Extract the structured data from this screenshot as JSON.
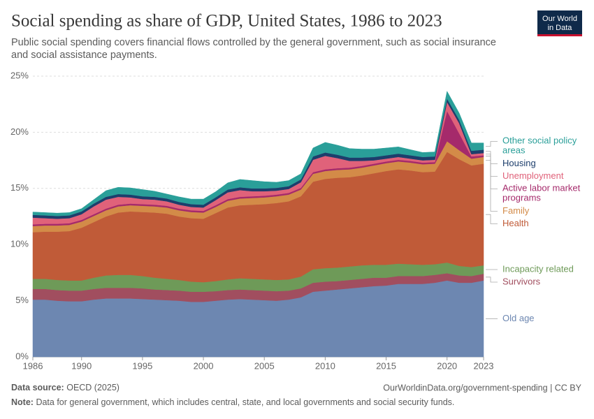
{
  "header": {
    "title": "Social spending as share of GDP, United States, 1986 to 2023",
    "subtitle_lines": [
      "Public social spending covers financial flows controlled by the general government, such as social insurance",
      "and social assistance payments."
    ],
    "logo_lines": [
      "Our World",
      "in Data"
    ]
  },
  "footer": {
    "source_label": "Data source:",
    "source": "OECD (2025)",
    "url": "OurWorldinData.org/government-spending | CC BY",
    "note_label": "Note:",
    "note": "Data for general government, which includes central, state, and local governments and social security funds."
  },
  "chart_data": {
    "type": "area",
    "stacked": true,
    "grid": true,
    "x": [
      1986,
      1987,
      1988,
      1989,
      1990,
      1991,
      1992,
      1993,
      1994,
      1995,
      1996,
      1997,
      1998,
      1999,
      2000,
      2001,
      2002,
      2003,
      2004,
      2005,
      2006,
      2007,
      2008,
      2009,
      2010,
      2011,
      2012,
      2013,
      2014,
      2015,
      2016,
      2017,
      2018,
      2019,
      2020,
      2021,
      2022,
      2023
    ],
    "xlim": [
      1986,
      2023
    ],
    "xticks": [
      1986,
      1990,
      1995,
      2000,
      2005,
      2010,
      2015,
      2020,
      2023
    ],
    "ylim": [
      0,
      25
    ],
    "yticks": [
      {
        "value": 0,
        "label": "0%"
      },
      {
        "value": 5,
        "label": "5%"
      },
      {
        "value": 10,
        "label": "10%"
      },
      {
        "value": 15,
        "label": "15%"
      },
      {
        "value": 20,
        "label": "20%"
      },
      {
        "value": 25,
        "label": "25%"
      }
    ],
    "series": [
      {
        "name": "Old age",
        "color": "#6d87b1",
        "values": [
          5.1,
          5.1,
          5.0,
          4.95,
          4.95,
          5.1,
          5.2,
          5.2,
          5.2,
          5.15,
          5.1,
          5.05,
          5.0,
          4.9,
          4.9,
          5.0,
          5.1,
          5.15,
          5.1,
          5.05,
          5.0,
          5.1,
          5.3,
          5.8,
          5.9,
          6.0,
          6.1,
          6.2,
          6.3,
          6.35,
          6.5,
          6.5,
          6.5,
          6.6,
          6.8,
          6.6,
          6.6,
          6.8
        ]
      },
      {
        "name": "Survivors",
        "color": "#a14e5f",
        "values": [
          0.95,
          0.95,
          0.95,
          0.95,
          0.95,
          0.95,
          0.95,
          0.95,
          0.95,
          0.95,
          0.9,
          0.9,
          0.9,
          0.9,
          0.9,
          0.85,
          0.85,
          0.85,
          0.85,
          0.85,
          0.85,
          0.8,
          0.8,
          0.8,
          0.8,
          0.75,
          0.75,
          0.75,
          0.75,
          0.7,
          0.7,
          0.7,
          0.7,
          0.7,
          0.65,
          0.65,
          0.6,
          0.6
        ]
      },
      {
        "name": "Incapacity related",
        "color": "#6e9a58",
        "values": [
          0.9,
          0.9,
          0.9,
          0.9,
          0.9,
          1.0,
          1.1,
          1.15,
          1.15,
          1.1,
          1.05,
          1.0,
          0.95,
          0.9,
          0.85,
          0.9,
          0.95,
          1.0,
          1.0,
          1.0,
          1.0,
          1.0,
          1.05,
          1.2,
          1.2,
          1.2,
          1.2,
          1.2,
          1.15,
          1.15,
          1.1,
          1.05,
          1.0,
          0.95,
          0.95,
          0.85,
          0.8,
          0.75
        ]
      },
      {
        "name": "Health",
        "color": "#c05b38",
        "values": [
          4.15,
          4.2,
          4.3,
          4.4,
          4.7,
          4.95,
          5.25,
          5.55,
          5.65,
          5.7,
          5.8,
          5.8,
          5.65,
          5.65,
          5.65,
          6.05,
          6.4,
          6.5,
          6.6,
          6.7,
          6.85,
          6.95,
          7.15,
          7.8,
          7.95,
          8.0,
          7.95,
          8.0,
          8.15,
          8.35,
          8.4,
          8.35,
          8.25,
          8.25,
          9.85,
          9.5,
          9.05,
          9.05
        ]
      },
      {
        "name": "Family",
        "color": "#d38b48",
        "values": [
          0.55,
          0.55,
          0.55,
          0.55,
          0.55,
          0.55,
          0.55,
          0.55,
          0.55,
          0.55,
          0.55,
          0.55,
          0.55,
          0.55,
          0.55,
          0.55,
          0.6,
          0.6,
          0.6,
          0.6,
          0.6,
          0.6,
          0.6,
          0.7,
          0.7,
          0.7,
          0.7,
          0.7,
          0.7,
          0.7,
          0.7,
          0.7,
          0.7,
          0.7,
          0.95,
          0.8,
          0.6,
          0.6
        ]
      },
      {
        "name": "Active labor market programs",
        "color": "#a52a6b",
        "values": [
          0.15,
          0.15,
          0.15,
          0.15,
          0.15,
          0.15,
          0.15,
          0.15,
          0.15,
          0.15,
          0.15,
          0.15,
          0.15,
          0.15,
          0.15,
          0.15,
          0.15,
          0.15,
          0.15,
          0.15,
          0.15,
          0.15,
          0.15,
          0.15,
          0.15,
          0.15,
          0.15,
          0.15,
          0.15,
          0.15,
          0.15,
          0.15,
          0.15,
          0.15,
          2.7,
          1.5,
          0.2,
          0.15
        ]
      },
      {
        "name": "Unemployment",
        "color": "#e0627a",
        "values": [
          0.6,
          0.5,
          0.45,
          0.45,
          0.5,
          0.7,
          0.8,
          0.7,
          0.55,
          0.45,
          0.45,
          0.4,
          0.35,
          0.3,
          0.3,
          0.45,
          0.6,
          0.6,
          0.45,
          0.4,
          0.35,
          0.35,
          0.5,
          1.1,
          1.2,
          0.9,
          0.6,
          0.45,
          0.3,
          0.25,
          0.25,
          0.2,
          0.2,
          0.2,
          0.8,
          0.9,
          0.2,
          0.2
        ]
      },
      {
        "name": "Housing",
        "color": "#1d3e6c",
        "values": [
          0.25,
          0.25,
          0.25,
          0.25,
          0.25,
          0.25,
          0.25,
          0.25,
          0.25,
          0.25,
          0.25,
          0.25,
          0.25,
          0.25,
          0.25,
          0.25,
          0.25,
          0.25,
          0.25,
          0.25,
          0.25,
          0.25,
          0.25,
          0.3,
          0.3,
          0.3,
          0.3,
          0.3,
          0.3,
          0.3,
          0.3,
          0.3,
          0.3,
          0.3,
          0.3,
          0.3,
          0.3,
          0.3
        ]
      },
      {
        "name": "Other social policy areas",
        "color": "#2a9f99",
        "values": [
          0.25,
          0.25,
          0.25,
          0.25,
          0.25,
          0.35,
          0.55,
          0.6,
          0.6,
          0.6,
          0.5,
          0.4,
          0.45,
          0.45,
          0.5,
          0.5,
          0.6,
          0.7,
          0.7,
          0.6,
          0.5,
          0.5,
          0.5,
          0.75,
          0.9,
          0.85,
          0.8,
          0.75,
          0.7,
          0.65,
          0.6,
          0.5,
          0.4,
          0.4,
          0.65,
          0.6,
          0.7,
          0.6
        ]
      }
    ]
  }
}
